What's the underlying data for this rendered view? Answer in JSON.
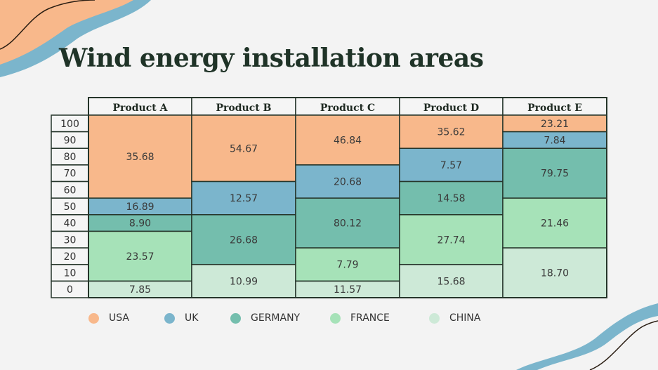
{
  "title": "Wind energy installation areas",
  "chart_data": {
    "type": "table",
    "columns": [
      "Product A",
      "Product B",
      "Product C",
      "Product D",
      "Product E"
    ],
    "row_labels": [
      "100",
      "90",
      "80",
      "70",
      "60",
      "50",
      "40",
      "30",
      "20",
      "10",
      "0"
    ],
    "series": [
      {
        "name": "USA",
        "color": "#f8b88b"
      },
      {
        "name": "UK",
        "color": "#7bb5cc"
      },
      {
        "name": "GERMANY",
        "color": "#74bead"
      },
      {
        "name": "FRANCE",
        "color": "#a6e2b8"
      },
      {
        "name": "CHINA",
        "color": "#cde9d7"
      }
    ],
    "cells": [
      [
        {
          "series": "USA",
          "label": "35.68",
          "range": [
            60,
            100
          ]
        },
        {
          "series": "UK",
          "label": "16.89",
          "range": [
            50,
            50
          ]
        },
        {
          "series": "GERMANY",
          "label": "8.90",
          "range": [
            40,
            40
          ]
        },
        {
          "series": "FRANCE",
          "label": "23.57",
          "range": [
            10,
            30
          ]
        },
        {
          "series": "CHINA",
          "label": "7.85",
          "range": [
            0,
            0
          ]
        }
      ],
      [
        {
          "series": "USA",
          "label": "54.67",
          "range": [
            70,
            100
          ]
        },
        {
          "series": "UK",
          "label": "12.57",
          "range": [
            50,
            60
          ]
        },
        {
          "series": "GERMANY",
          "label": "26.68",
          "range": [
            20,
            40
          ]
        },
        {
          "series": "CHINA",
          "label": "10.99",
          "range": [
            0,
            10
          ]
        }
      ],
      [
        {
          "series": "USA",
          "label": "46.84",
          "range": [
            80,
            100
          ]
        },
        {
          "series": "UK",
          "label": "20.68",
          "range": [
            60,
            70
          ]
        },
        {
          "series": "GERMANY",
          "label": "80.12",
          "range": [
            30,
            50
          ]
        },
        {
          "series": "FRANCE",
          "label": "7.79",
          "range": [
            10,
            20
          ]
        },
        {
          "series": "CHINA",
          "label": "11.57",
          "range": [
            0,
            0
          ]
        }
      ],
      [
        {
          "series": "USA",
          "label": "35.62",
          "range": [
            90,
            100
          ]
        },
        {
          "series": "UK",
          "label": "7.57",
          "range": [
            70,
            80
          ]
        },
        {
          "series": "GERMANY",
          "label": "14.58",
          "range": [
            50,
            60
          ]
        },
        {
          "series": "FRANCE",
          "label": "27.74",
          "range": [
            20,
            40
          ]
        },
        {
          "series": "CHINA",
          "label": "15.68",
          "range": [
            0,
            10
          ]
        }
      ],
      [
        {
          "series": "USA",
          "label": "23.21",
          "range": [
            100,
            100
          ]
        },
        {
          "series": "UK",
          "label": "7.84",
          "range": [
            90,
            90
          ]
        },
        {
          "series": "GERMANY",
          "label": "79.75",
          "range": [
            60,
            80
          ]
        },
        {
          "series": "FRANCE",
          "label": "21.46",
          "range": [
            30,
            50
          ]
        },
        {
          "series": "CHINA",
          "label": "18.70",
          "range": [
            0,
            20
          ]
        }
      ]
    ],
    "legend_position": "bottom"
  }
}
